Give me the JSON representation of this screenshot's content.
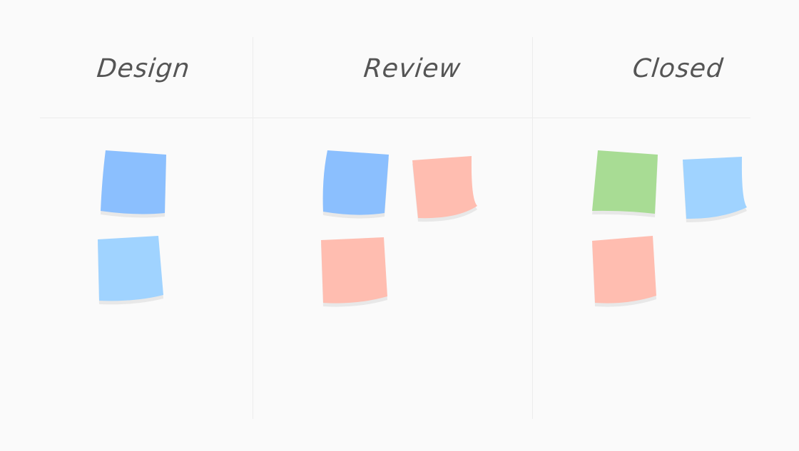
{
  "columns": [
    {
      "title": "Design",
      "notes": [
        "#8bbffe",
        "#a0d3ff"
      ]
    },
    {
      "title": "Review",
      "notes": [
        "#8bbffe",
        "#ffbdb0",
        "#ffbdb0"
      ]
    },
    {
      "title": "Closed",
      "notes": [
        "#a8dc94",
        "#a0d3ff",
        "#ffbdb0"
      ]
    }
  ],
  "colors": {
    "background": "#fafafa",
    "divider": "#ececec",
    "title": "#555555"
  }
}
